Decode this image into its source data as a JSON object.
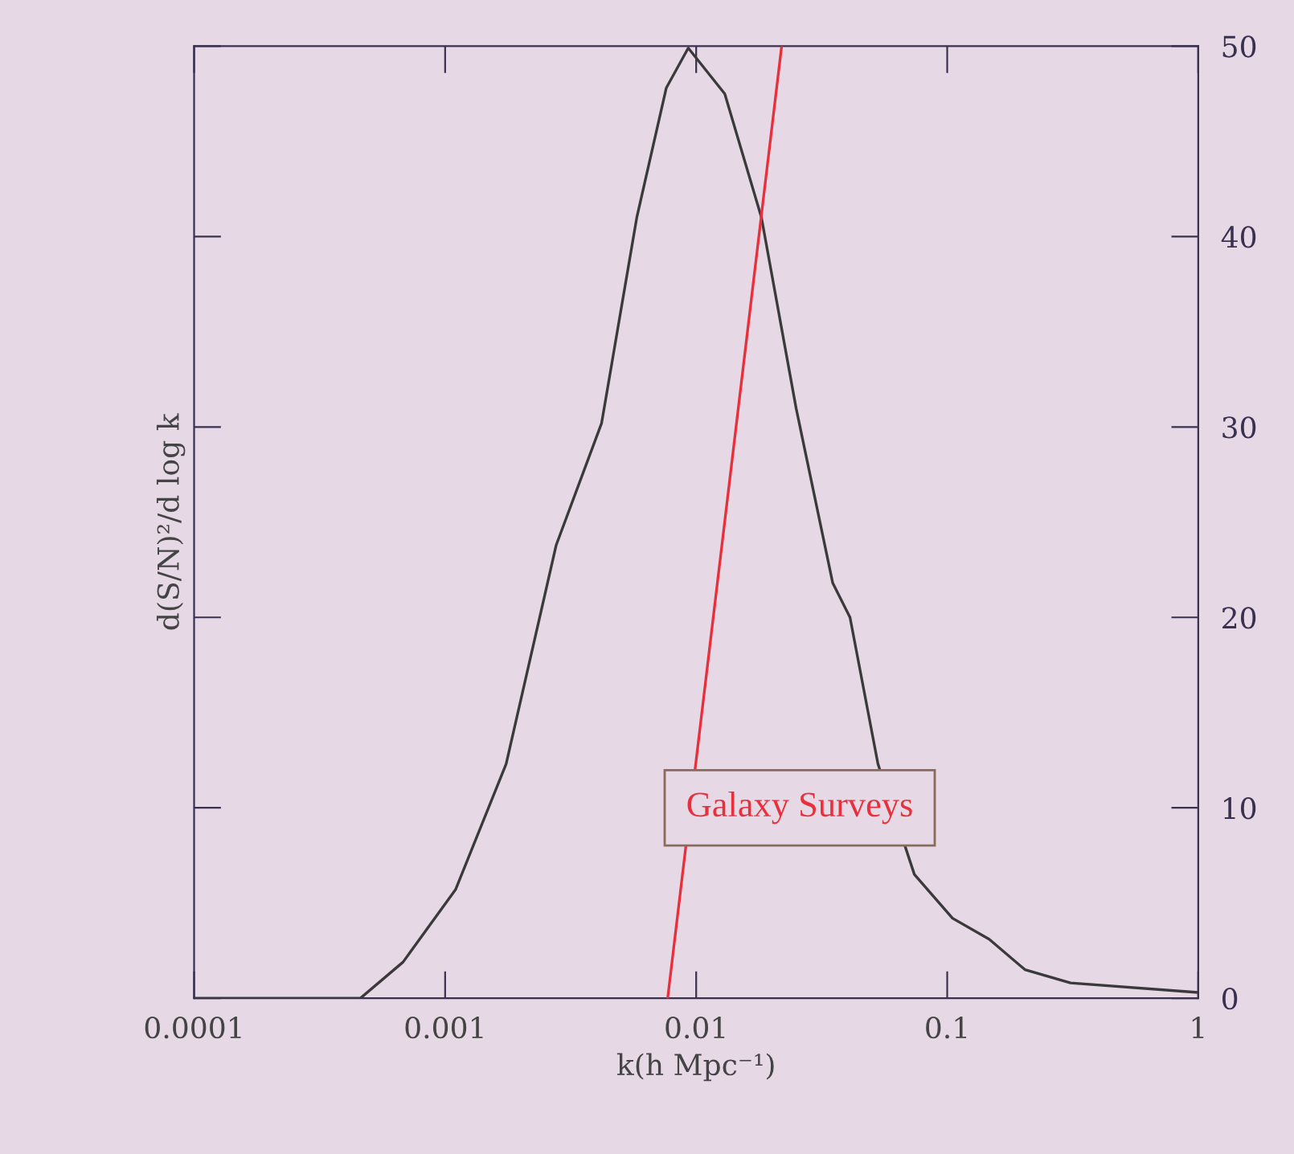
{
  "chart_data": {
    "type": "line",
    "xlabel": "k(h Mpc⁻¹)",
    "ylabel": "d(S/N)²/d log k",
    "log": "x",
    "xlim": [
      0.0001,
      1
    ],
    "ylim": [
      0,
      50
    ],
    "xticks": [
      0.0001,
      0.001,
      0.01,
      0.1,
      1
    ],
    "yticks": [
      0,
      10,
      20,
      30,
      40,
      50
    ],
    "grid": false,
    "legend": false,
    "marker": "none",
    "line_style": "solid",
    "annotations": [
      "Galaxy Surveys"
    ],
    "series": [
      {
        "color": "#3a3a3a",
        "x": [
          0.0001,
          0.00046,
          0.00068,
          0.0011,
          0.00175,
          0.00277,
          0.0042,
          0.0058,
          0.0076,
          0.0093,
          0.013,
          0.0182,
          0.025,
          0.035,
          0.041,
          0.053,
          0.074,
          0.105,
          0.147,
          0.204,
          0.31,
          1
        ],
        "values": [
          0,
          0,
          1.9,
          5.7,
          12.3,
          23.8,
          30.2,
          41,
          47.8,
          49.9,
          47.5,
          41,
          31,
          21.8,
          20,
          12.3,
          6.5,
          4.2,
          3.1,
          1.5,
          0.8,
          0.3
        ]
      },
      {
        "color": "#e8303c",
        "x": [
          0.0077,
          0.0219
        ],
        "values": [
          0,
          50
        ]
      }
    ]
  }
}
